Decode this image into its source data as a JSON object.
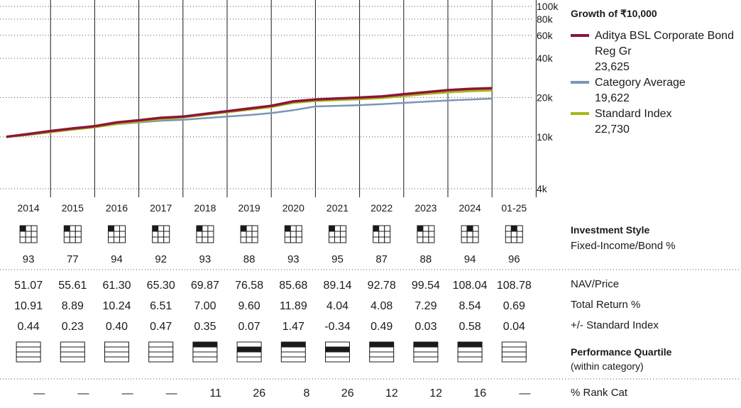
{
  "chart_data": {
    "type": "line",
    "title": "Growth of ₹10,000",
    "y_scale": "log",
    "ylim": [
      4000,
      100000
    ],
    "y_ticks": [
      {
        "value": 100000,
        "label": "100k"
      },
      {
        "value": 80000,
        "label": "80k"
      },
      {
        "value": 60000,
        "label": "60k"
      },
      {
        "value": 40000,
        "label": "40k"
      },
      {
        "value": 20000,
        "label": "20k"
      },
      {
        "value": 10000,
        "label": "10k"
      },
      {
        "value": 4000,
        "label": "4k"
      }
    ],
    "x_labels": [
      "2014",
      "2015",
      "2016",
      "2017",
      "2018",
      "2019",
      "2020",
      "2021",
      "2022",
      "2023",
      "2024",
      "01-25"
    ],
    "x": [
      2014.0,
      2014.5,
      2015.0,
      2015.5,
      2016.0,
      2016.5,
      2017.0,
      2017.5,
      2018.0,
      2018.5,
      2019.0,
      2019.5,
      2020.0,
      2020.5,
      2021.0,
      2021.5,
      2022.0,
      2022.5,
      2023.0,
      2023.5,
      2024.0,
      2024.5,
      2025.0
    ],
    "series": [
      {
        "name": "Aditya BSL Corporate Bond Reg Gr",
        "final_value": "23,625",
        "color": "#8c1538",
        "values": [
          10000,
          10500,
          11090,
          11600,
          12080,
          12900,
          13400,
          14000,
          14300,
          15000,
          15700,
          16500,
          17300,
          18700,
          19300,
          19700,
          20000,
          20400,
          21200,
          22000,
          22800,
          23300,
          23625
        ]
      },
      {
        "name": "Category Average",
        "final_value": "19,622",
        "color": "#7b96b6",
        "values": [
          10000,
          10400,
          10980,
          11400,
          11900,
          12500,
          12900,
          13300,
          13500,
          13900,
          14300,
          14700,
          15200,
          16000,
          17100,
          17300,
          17500,
          17800,
          18200,
          18600,
          19000,
          19300,
          19622
        ]
      },
      {
        "name": "Standard Index",
        "final_value": "22,730",
        "color": "#a6b719",
        "values": [
          10000,
          10400,
          10900,
          11400,
          11900,
          12600,
          13100,
          13700,
          14100,
          14800,
          15500,
          16200,
          17000,
          18300,
          18900,
          19200,
          19500,
          19900,
          20600,
          21400,
          22000,
          22500,
          22730
        ]
      }
    ],
    "grid": true,
    "legend_position": "right"
  },
  "sections": {
    "investment_style": {
      "title": "Investment Style",
      "subtitle": "Fixed-Income/Bond %"
    },
    "performance_quartile": {
      "title": "Performance Quartile",
      "subtitle": "(within category)"
    }
  },
  "table": {
    "style_values": [
      "93",
      "77",
      "94",
      "92",
      "93",
      "88",
      "93",
      "95",
      "87",
      "88",
      "94",
      "96"
    ],
    "style_box_filled": [
      1,
      1,
      1,
      1,
      1,
      1,
      1,
      1,
      1,
      1,
      2,
      2
    ],
    "rows": [
      {
        "label": "NAV/Price",
        "values": [
          "51.07",
          "55.61",
          "61.30",
          "65.30",
          "69.87",
          "76.58",
          "85.68",
          "89.14",
          "92.78",
          "99.54",
          "108.04",
          "108.78"
        ]
      },
      {
        "label": "Total Return %",
        "values": [
          "10.91",
          "8.89",
          "10.24",
          "6.51",
          "7.00",
          "9.60",
          "11.89",
          "4.04",
          "4.08",
          "7.29",
          "8.54",
          "0.69"
        ]
      },
      {
        "label": "+/- Standard Index",
        "values": [
          "0.44",
          "0.23",
          "0.40",
          "0.47",
          "0.35",
          "0.07",
          "1.47",
          "-0.34",
          "0.49",
          "0.03",
          "0.58",
          "0.04"
        ]
      }
    ],
    "quartile_values": [
      0,
      0,
      0,
      0,
      1,
      2,
      1,
      2,
      1,
      1,
      1,
      0
    ],
    "rank_cat": {
      "label": "% Rank Cat",
      "values": [
        "—",
        "—",
        "—",
        "—",
        "11",
        "26",
        "8",
        "26",
        "12",
        "12",
        "16",
        "—"
      ]
    }
  }
}
